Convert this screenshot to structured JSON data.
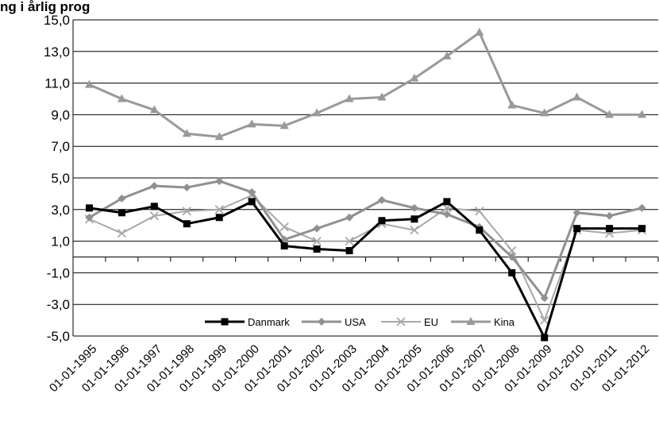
{
  "chart_data": {
    "type": "line",
    "title": "ng i årlig prog",
    "xlabel": "",
    "ylabel": "",
    "ylim": [
      -5,
      15
    ],
    "yticks": [
      "15,0",
      "13,0",
      "11,0",
      "9,0",
      "7,0",
      "5,0",
      "3,0",
      "1,0",
      "-1,0",
      "-3,0",
      "-5,0"
    ],
    "grid": true,
    "legend_position": "bottom-center",
    "categories": [
      "01-01-1995",
      "01-01-1996",
      "01-01-1997",
      "01-01-1998",
      "01-01-1999",
      "01-01-2000",
      "01-01-2001",
      "01-01-2002",
      "01-01-2003",
      "01-01-2004",
      "01-01-2005",
      "01-01-2006",
      "01-01-2007",
      "01-01-2008",
      "01-01-2009",
      "01-01-2010",
      "01-01-2011",
      "01-01-2012"
    ],
    "series": [
      {
        "name": "Danmark",
        "color": "#000000",
        "marker": "square",
        "line_width": 3,
        "points": [
          [
            0,
            3.1
          ],
          [
            1,
            2.8
          ],
          [
            2,
            3.2
          ],
          [
            3,
            2.1
          ],
          [
            4,
            2.5
          ],
          [
            5,
            3.5
          ],
          [
            6,
            0.7
          ],
          [
            7,
            0.5
          ],
          [
            8,
            0.4
          ],
          [
            9,
            2.3
          ],
          [
            10,
            2.4
          ],
          [
            11,
            3.5
          ],
          [
            12,
            1.7
          ],
          [
            13,
            -1.0
          ],
          [
            14,
            -5.1
          ],
          [
            15,
            1.8
          ],
          [
            16,
            1.8
          ],
          [
            17,
            1.8
          ]
        ]
      },
      {
        "name": "USA",
        "color": "#909090",
        "marker": "diamond",
        "line_width": 3,
        "points": [
          [
            0,
            2.5
          ],
          [
            1,
            3.7
          ],
          [
            2,
            4.5
          ],
          [
            3,
            4.4
          ],
          [
            4,
            4.8
          ],
          [
            5,
            4.1
          ],
          [
            6,
            1.1
          ],
          [
            7,
            1.8
          ],
          [
            8,
            2.5
          ],
          [
            9,
            3.6
          ],
          [
            10,
            3.1
          ],
          [
            11,
            2.7
          ],
          [
            12,
            1.9
          ],
          [
            13,
            0.0
          ],
          [
            14,
            -2.6
          ],
          [
            15,
            2.8
          ],
          [
            16,
            2.6
          ],
          [
            17,
            3.1
          ]
        ]
      },
      {
        "name": "EU",
        "color": "#a8a8a8",
        "marker": "x",
        "line_width": 2,
        "points": [
          [
            0,
            2.4
          ],
          [
            1,
            1.5
          ],
          [
            2,
            2.6
          ],
          [
            3,
            2.9
          ],
          [
            4,
            3.0
          ],
          [
            5,
            3.9
          ],
          [
            6,
            1.9
          ],
          [
            7,
            1.0
          ],
          [
            8,
            1.0
          ],
          [
            9,
            2.1
          ],
          [
            10,
            1.7
          ],
          [
            11,
            3.1
          ],
          [
            12,
            2.9
          ],
          [
            13,
            0.4
          ],
          [
            14,
            -4.0
          ],
          [
            15,
            1.7
          ],
          [
            16,
            1.5
          ],
          [
            17,
            1.7
          ]
        ]
      },
      {
        "name": "Kina",
        "color": "#999999",
        "marker": "triangle",
        "line_width": 3,
        "points": [
          [
            0,
            10.9
          ],
          [
            1,
            10.0
          ],
          [
            2,
            9.3
          ],
          [
            3,
            7.8
          ],
          [
            4,
            7.6
          ],
          [
            5,
            8.4
          ],
          [
            6,
            8.3
          ],
          [
            7,
            9.1
          ],
          [
            8,
            10.0
          ],
          [
            9,
            10.1
          ],
          [
            10,
            11.3
          ],
          [
            11,
            12.7
          ],
          [
            12,
            14.2
          ],
          [
            13,
            9.6
          ],
          [
            14,
            9.1
          ],
          [
            15,
            10.1
          ],
          [
            16,
            9.0
          ],
          [
            17,
            9.0
          ]
        ]
      }
    ]
  }
}
